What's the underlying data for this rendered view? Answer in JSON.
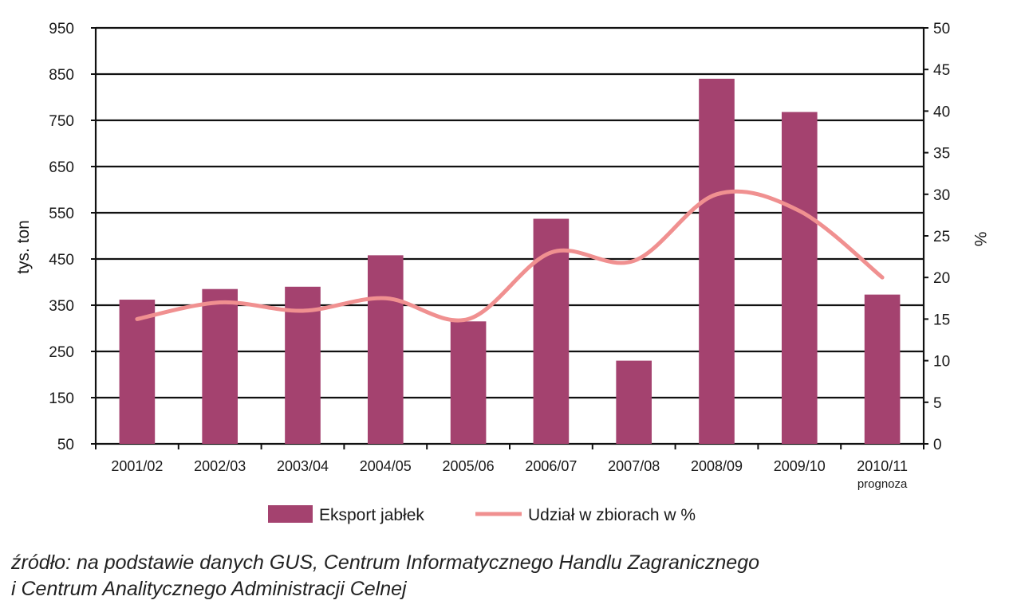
{
  "chart_data": {
    "type": "bar",
    "categories": [
      "2001/02",
      "2002/03",
      "2003/04",
      "2004/05",
      "2005/06",
      "2006/07",
      "2007/08",
      "2008/09",
      "2009/10",
      "2010/11"
    ],
    "category_sublabels": [
      "",
      "",
      "",
      "",
      "",
      "",
      "",
      "",
      "",
      "prognoza"
    ],
    "series": [
      {
        "name": "Eksport jabłek",
        "type": "bar",
        "axis": "left",
        "color": "#a4426f",
        "values": [
          362,
          385,
          390,
          458,
          315,
          537,
          230,
          840,
          768,
          373
        ]
      },
      {
        "name": "Udział w zbiorach w %",
        "type": "line",
        "axis": "right",
        "color": "#f09090",
        "values": [
          15,
          17,
          16,
          17.5,
          15,
          23,
          22,
          30,
          28,
          20
        ]
      }
    ],
    "ylabel": "tys. ton",
    "y2label": "%",
    "ylim": [
      50,
      950
    ],
    "yticks": [
      "950",
      "850",
      "750",
      "650",
      "550",
      "450",
      "350",
      "250",
      "150",
      "50"
    ],
    "y2lim": [
      0,
      50
    ],
    "y2ticks": [
      "50",
      "45",
      "40",
      "35",
      "30",
      "25",
      "20",
      "15",
      "10",
      "5",
      "0"
    ],
    "grid": true,
    "legend": "bottom"
  },
  "source": {
    "line1": "źródło: na podstawie danych GUS, Centrum Informatycznego Handlu Zagranicznego",
    "line2": "i Centrum Analitycznego Administracji Celnej"
  }
}
